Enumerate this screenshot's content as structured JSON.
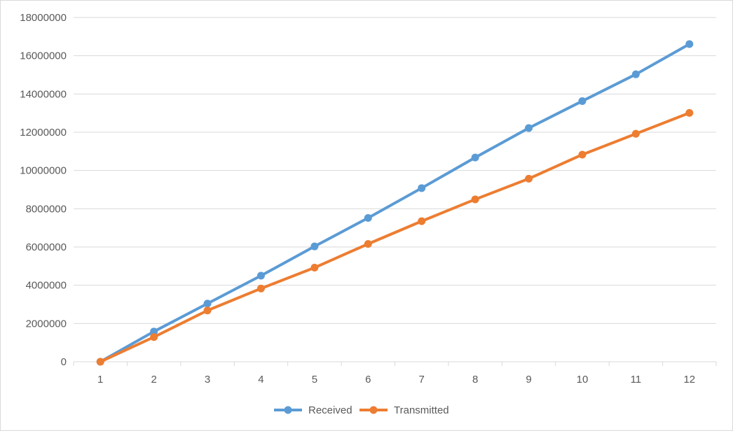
{
  "chart_data": {
    "type": "line",
    "title": "",
    "xlabel": "",
    "ylabel": "",
    "categories": [
      "1",
      "2",
      "3",
      "4",
      "5",
      "6",
      "7",
      "8",
      "9",
      "10",
      "11",
      "12"
    ],
    "ylim": [
      0,
      18000000
    ],
    "yticks": [
      0,
      2000000,
      4000000,
      6000000,
      8000000,
      10000000,
      12000000,
      14000000,
      16000000,
      18000000
    ],
    "ytick_labels": [
      "0",
      "2000000",
      "4000000",
      "6000000",
      "8000000",
      "10000000",
      "12000000",
      "14000000",
      "16000000",
      "18000000"
    ],
    "grid": "horizontal",
    "legend_position": "bottom",
    "series": [
      {
        "name": "Received",
        "color": "#5b9bd5",
        "values": [
          0,
          1580000,
          3040000,
          4500000,
          6030000,
          7520000,
          9080000,
          10680000,
          12220000,
          13630000,
          15030000,
          16610000
        ]
      },
      {
        "name": "Transmitted",
        "color": "#ed7d31",
        "values": [
          0,
          1290000,
          2680000,
          3830000,
          4920000,
          6160000,
          7350000,
          8490000,
          9570000,
          10830000,
          11920000,
          13010000
        ]
      }
    ]
  }
}
